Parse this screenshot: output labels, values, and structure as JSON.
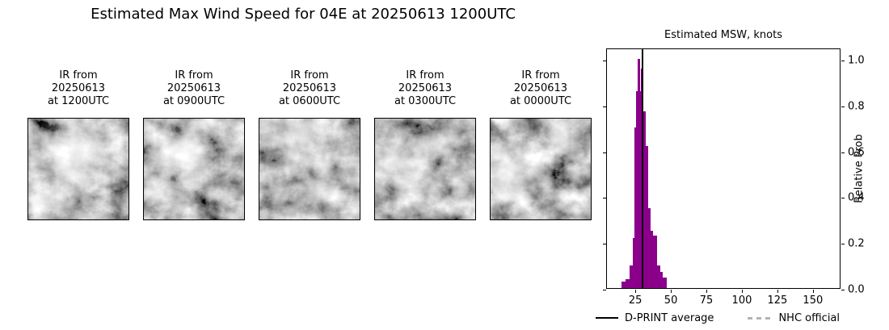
{
  "figure_title": "Estimated Max Wind Speed for 04E at 20250613 1200UTC",
  "ir_panels": [
    {
      "label_lines": [
        "IR from",
        "20250613",
        "at 1200UTC"
      ]
    },
    {
      "label_lines": [
        "IR from",
        "20250613",
        "at 0900UTC"
      ]
    },
    {
      "label_lines": [
        "IR from",
        "20250613",
        "at 0600UTC"
      ]
    },
    {
      "label_lines": [
        "IR from",
        "20250613",
        "at 0300UTC"
      ]
    },
    {
      "label_lines": [
        "IR from",
        "20250613",
        "at 0000UTC"
      ]
    }
  ],
  "chart_data": {
    "type": "bar",
    "subtype": "histogram",
    "title": "Estimated MSW, knots",
    "xlabel": "",
    "ylabel": "Relative Prob",
    "xlim": [
      5,
      170
    ],
    "ylim": [
      0,
      1.05
    ],
    "x_ticks": [
      25,
      50,
      75,
      100,
      125,
      150
    ],
    "y_ticks": [
      "0.0",
      "0.2",
      "0.4",
      "0.6",
      "0.8",
      "1.0"
    ],
    "grid": false,
    "bar_color": "#8a008a",
    "bins": [
      {
        "x0": 15.4,
        "x1": 18.3,
        "p": 0.03
      },
      {
        "x0": 18.3,
        "x1": 21.2,
        "p": 0.04
      },
      {
        "x0": 21.2,
        "x1": 23.0,
        "p": 0.1
      },
      {
        "x0": 23.0,
        "x1": 24.6,
        "p": 0.22
      },
      {
        "x0": 24.6,
        "x1": 25.4,
        "p": 0.7
      },
      {
        "x0": 25.4,
        "x1": 26.9,
        "p": 0.86
      },
      {
        "x0": 26.9,
        "x1": 28.1,
        "p": 1.0
      },
      {
        "x0": 28.1,
        "x1": 28.9,
        "p": 0.86
      },
      {
        "x0": 28.9,
        "x1": 30.6,
        "p": 0.96
      },
      {
        "x0": 30.6,
        "x1": 32.3,
        "p": 0.77
      },
      {
        "x0": 32.3,
        "x1": 34.0,
        "p": 0.62
      },
      {
        "x0": 34.0,
        "x1": 35.7,
        "p": 0.35
      },
      {
        "x0": 35.7,
        "x1": 37.6,
        "p": 0.25
      },
      {
        "x0": 37.6,
        "x1": 40.2,
        "p": 0.23
      },
      {
        "x0": 40.2,
        "x1": 42.4,
        "p": 0.1
      },
      {
        "x0": 42.4,
        "x1": 44.5,
        "p": 0.07
      },
      {
        "x0": 44.5,
        "x1": 47.3,
        "p": 0.045
      }
    ],
    "avg_line": {
      "value_knots": 30,
      "color": "#000000"
    },
    "legend": [
      {
        "label": "D-PRINT average",
        "style": "solid",
        "color": "#000000"
      },
      {
        "label": "NHC official",
        "style": "dashed",
        "color": "#b3b3b3"
      }
    ],
    "legend_position": "below"
  }
}
